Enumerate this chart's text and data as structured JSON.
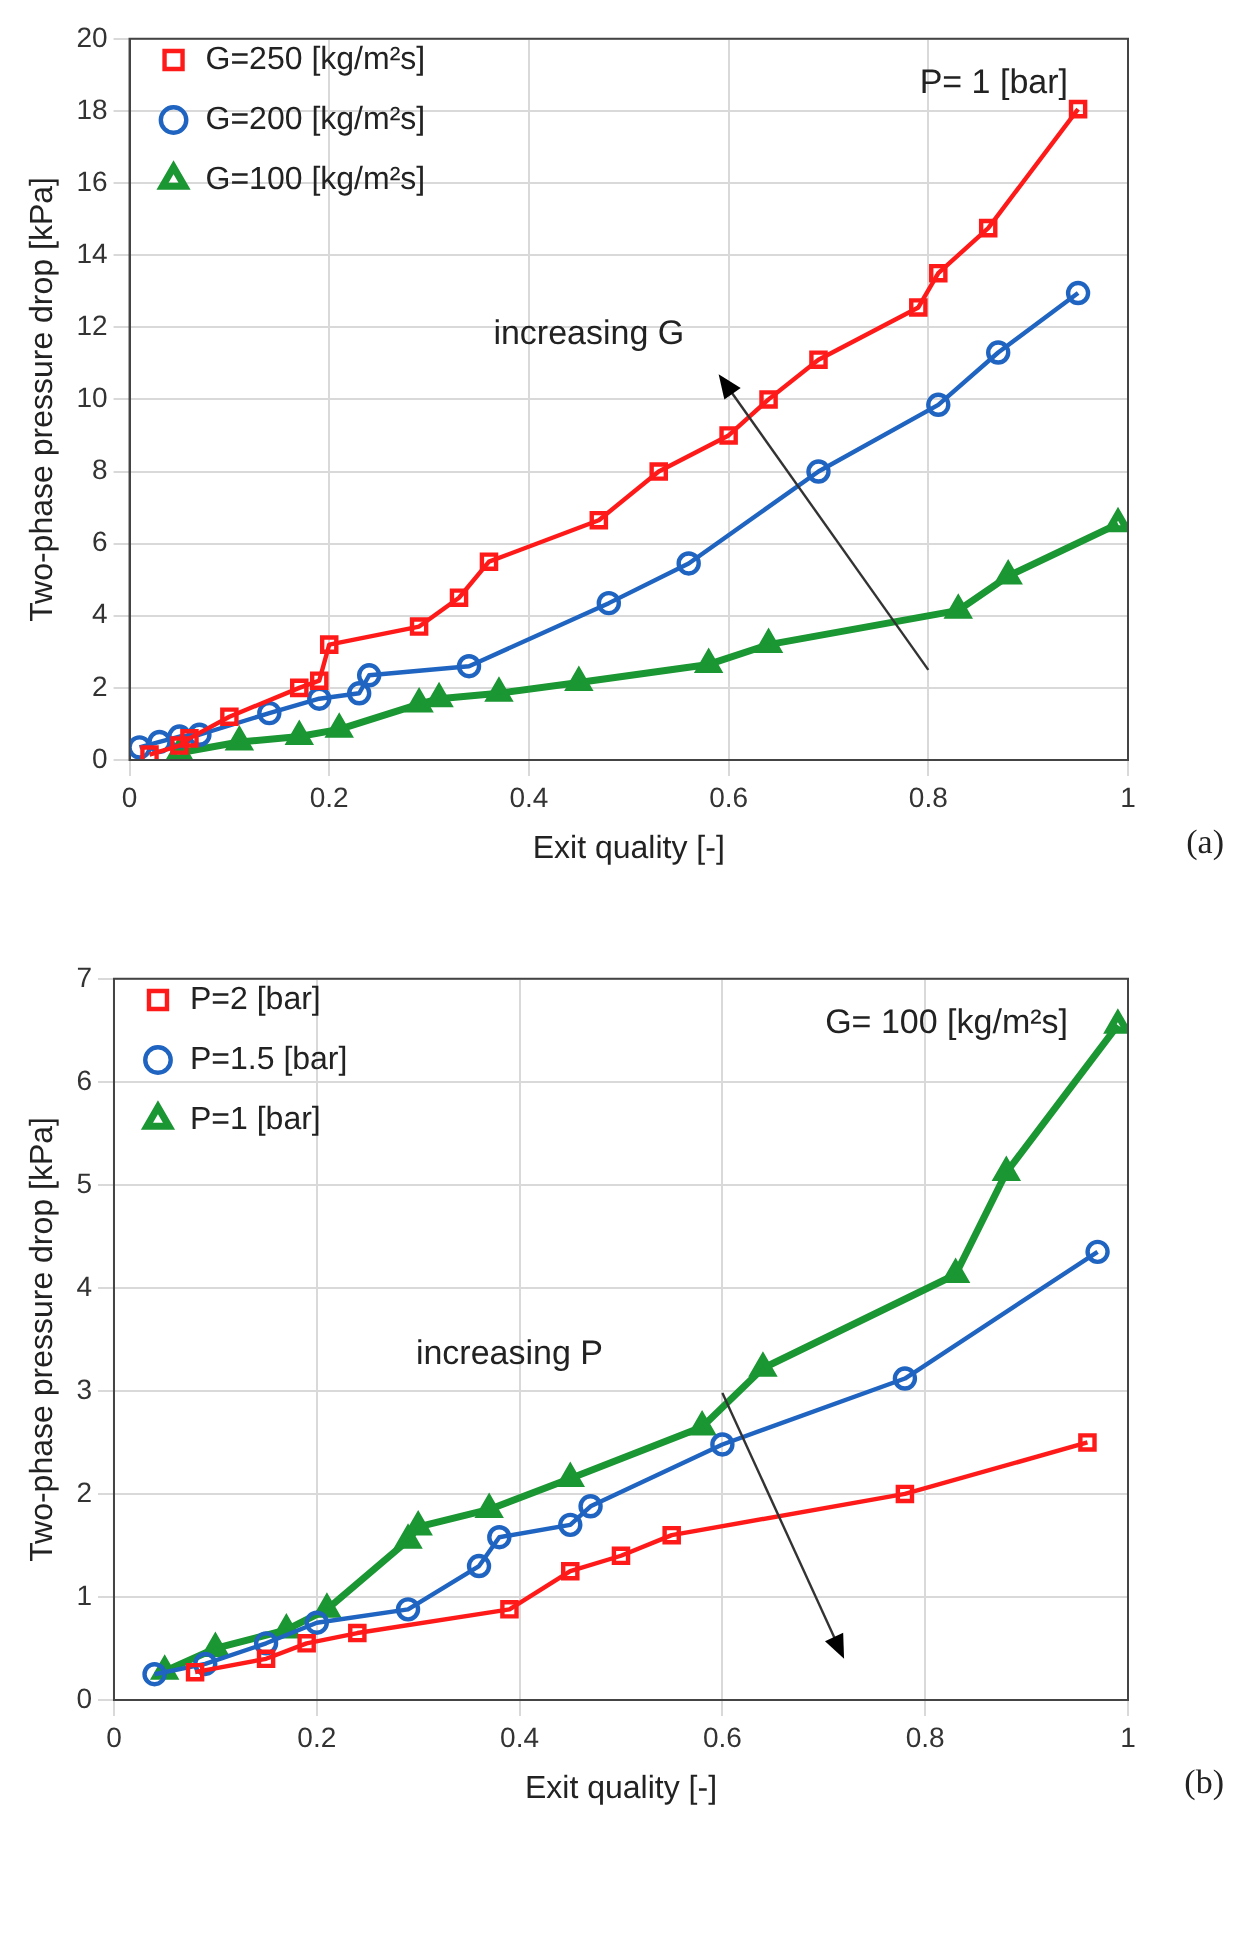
{
  "chart_data": [
    {
      "type": "line",
      "xlabel": "Exit quality [-]",
      "ylabel": "Two-phase pressure drop [kPa]",
      "xlim": [
        0,
        1
      ],
      "xticks": [
        0,
        0.2,
        0.4,
        0.6,
        0.8,
        1
      ],
      "ylim": [
        0,
        20
      ],
      "yticks": [
        0,
        2,
        4,
        6,
        8,
        10,
        12,
        14,
        16,
        18,
        20
      ],
      "grid": true,
      "legend": "top left",
      "line_style": "solid",
      "annotations": [
        "P= 1 [bar]",
        "increasing G",
        "(a)"
      ],
      "series": [
        {
          "name": "G=100 [kg/m²s]",
          "color": "#1a9632",
          "marker": "triangle",
          "x": [
            0.05,
            0.11,
            0.17,
            0.21,
            0.29,
            0.31,
            0.37,
            0.45,
            0.58,
            0.64,
            0.83,
            0.88,
            0.99
          ],
          "values": [
            0.2,
            0.5,
            0.65,
            0.85,
            1.55,
            1.7,
            1.85,
            2.15,
            2.65,
            3.2,
            4.15,
            5.1,
            6.55
          ]
        },
        {
          "name": "G=200 [kg/m²s]",
          "color": "#1f64c0",
          "marker": "circle",
          "x": [
            0.01,
            0.03,
            0.05,
            0.07,
            0.14,
            0.19,
            0.23,
            0.24,
            0.34,
            0.48,
            0.56,
            0.69,
            0.81,
            0.87,
            0.95
          ],
          "values": [
            0.35,
            0.5,
            0.65,
            0.7,
            1.3,
            1.7,
            1.85,
            2.35,
            2.6,
            4.35,
            5.45,
            8.0,
            9.85,
            11.3,
            12.95
          ]
        },
        {
          "name": "G=250 [kg/m²s]",
          "color": "#ff1a1a",
          "marker": "square",
          "x": [
            0.02,
            0.05,
            0.06,
            0.1,
            0.17,
            0.19,
            0.2,
            0.29,
            0.33,
            0.36,
            0.47,
            0.53,
            0.6,
            0.64,
            0.69,
            0.79,
            0.81,
            0.86,
            0.95
          ],
          "values": [
            0.15,
            0.4,
            0.6,
            1.2,
            2.0,
            2.2,
            3.2,
            3.7,
            4.5,
            5.5,
            6.65,
            8.0,
            9.0,
            10.0,
            11.1,
            12.55,
            13.5,
            14.75,
            18.05
          ]
        }
      ]
    },
    {
      "type": "line",
      "xlabel": "Exit quality [-]",
      "ylabel": "Two-phase pressure drop [kPa]",
      "xlim": [
        0,
        1
      ],
      "xticks": [
        0,
        0.2,
        0.4,
        0.6,
        0.8,
        1
      ],
      "ylim": [
        0,
        7
      ],
      "yticks": [
        0,
        1,
        2,
        3,
        4,
        5,
        6,
        7
      ],
      "grid": true,
      "legend": "top left",
      "line_style": "solid",
      "annotations": [
        "G= 100 [kg/m²s]",
        "increasing P",
        "(b)"
      ],
      "series": [
        {
          "name": "P=1 [bar]",
          "color": "#1a9632",
          "marker": "triangle",
          "x": [
            0.05,
            0.1,
            0.17,
            0.21,
            0.29,
            0.3,
            0.37,
            0.45,
            0.58,
            0.64,
            0.83,
            0.88,
            0.99
          ],
          "values": [
            0.28,
            0.5,
            0.68,
            0.88,
            1.55,
            1.68,
            1.85,
            2.15,
            2.65,
            3.22,
            4.13,
            5.12,
            6.55
          ]
        },
        {
          "name": "P=1.5 [bar]",
          "color": "#1f64c0",
          "marker": "circle",
          "x": [
            0.04,
            0.09,
            0.15,
            0.2,
            0.29,
            0.36,
            0.38,
            0.45,
            0.47,
            0.6,
            0.78,
            0.97
          ],
          "values": [
            0.25,
            0.35,
            0.55,
            0.75,
            0.88,
            1.3,
            1.58,
            1.7,
            1.88,
            2.48,
            3.12,
            4.35
          ]
        },
        {
          "name": "P=2 [bar]",
          "color": "#ff1a1a",
          "marker": "square",
          "x": [
            0.08,
            0.15,
            0.19,
            0.24,
            0.39,
            0.45,
            0.5,
            0.55,
            0.78,
            0.96
          ],
          "values": [
            0.27,
            0.4,
            0.55,
            0.65,
            0.88,
            1.25,
            1.4,
            1.6,
            2.0,
            2.5
          ]
        }
      ]
    }
  ]
}
